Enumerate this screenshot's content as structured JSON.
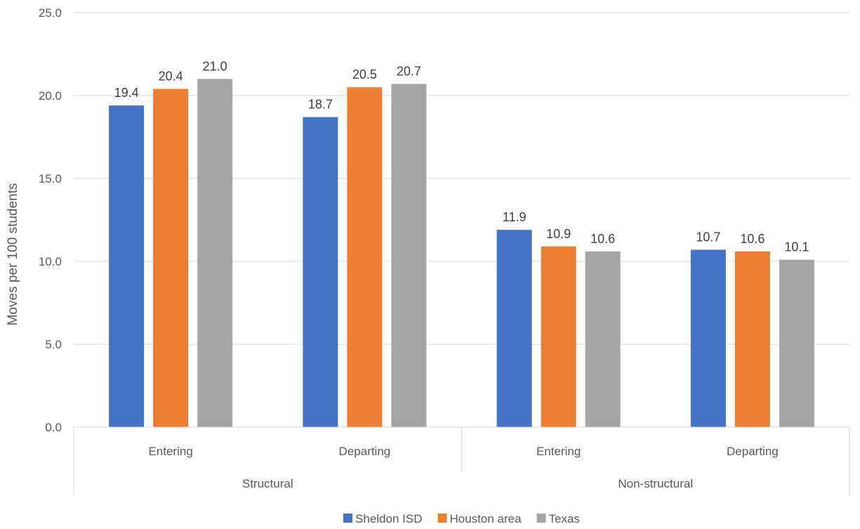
{
  "chart_data": {
    "type": "bar",
    "groups": [
      "Structural",
      "Non-structural"
    ],
    "categories": [
      "Entering",
      "Departing",
      "Entering",
      "Departing"
    ],
    "category_group": [
      0,
      0,
      1,
      1
    ],
    "series": [
      {
        "name": "Sheldon ISD",
        "color": "#4472C4",
        "values": [
          19.4,
          18.7,
          11.9,
          10.7
        ]
      },
      {
        "name": "Houston area",
        "color": "#ED7D31",
        "values": [
          20.4,
          20.5,
          10.9,
          10.6
        ]
      },
      {
        "name": "Texas",
        "color": "#A5A5A5",
        "values": [
          21.0,
          20.7,
          10.6,
          10.1
        ]
      }
    ],
    "ylabel": "Moves per 100 students",
    "xlabel": "",
    "ylim": [
      0,
      25
    ],
    "yticks": [
      "0.0",
      "5.0",
      "10.0",
      "15.0",
      "20.0",
      "25.0"
    ],
    "grid": true,
    "legend": "bottom-center"
  }
}
